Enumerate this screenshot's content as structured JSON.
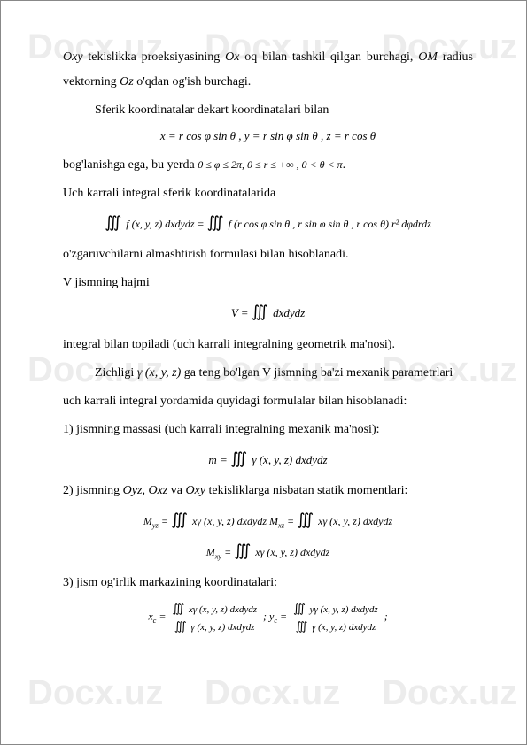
{
  "watermark": "Docx.uz",
  "p1_a": "Oxy",
  "p1_b": " tekislikka proeksiyasining ",
  "p1_c": "Ox",
  "p1_d": " oq bilan tashkil qilgan burchagi, ",
  "p1_e": "OM",
  "p1_f": " radius vektorning ",
  "p1_g": "Oz",
  "p1_h": " o'qdan og'ish burchagi.",
  "p2": "Sferik koordinatalar dekart koordinatalari bilan",
  "f1": "x = r cos φ sin θ , y = r sin φ sin θ , z = r cos θ",
  "p3_a": "bog'lanishga ega, bu yerda ",
  "p3_b": "0 ≤ φ ≤ 2π, 0 ≤ r ≤ +∞ , 0 < θ < π",
  "p3_c": ".",
  "p4": "Uch karrali integral sferik koordinatalarida",
  "f2_a": "∭",
  "f2_b": " f (x, y, z) dxdydz = ",
  "f2_c": "∭",
  "f2_d": " f (r cos φ sin θ , r sin φ sin θ , r cos θ) r² dφdrdz",
  "p5": "o'zgaruvchilarni almashtirish formulasi bilan hisoblanadi.",
  "p6": "V jismning hajmi",
  "f3_a": "V = ",
  "f3_b": "∭",
  "f3_c": " dxdydz",
  "p7": "integral bilan topiladi (uch karrali integralning geometrik ma'nosi).",
  "p8_a": "Zichligi ",
  "p8_b": "γ (x, y, z)",
  "p8_c": " ga teng bo'lgan V jismning ba'zi mexanik parametrlari",
  "p9": "uch karrali integral yordamida quyidagi formulalar bilan hisoblanadi:",
  "p10": "1) jismning massasi (uch karrali integralning mexanik ma'nosi):",
  "f4_a": "m = ",
  "f4_b": "∭",
  "f4_c": " γ (x, y, z) dxdydz",
  "p11_a": "2) jismning ",
  "p11_b": "Oyz, Oxz",
  "p11_c": " va ",
  "p11_d": "Oxy",
  "p11_e": " tekisliklarga nisbatan statik momentlari:",
  "f5_a": "M",
  "f5_sub1": "yz",
  "f5_b": " = ",
  "f5_c": "∭",
  "f5_d": " xγ (x, y, z) dxdydz  M",
  "f5_sub2": "xz",
  "f5_e": " = ",
  "f5_f": "∭",
  "f5_g": " xγ (x, y, z) dxdydz",
  "f6_a": "M",
  "f6_sub": "xy",
  "f6_b": " = ",
  "f6_c": "∭",
  "f6_d": " xγ (x, y, z) dxdydz",
  "p12": "3) jism og'irlik markazining koordinatalari:",
  "f7_xc": "x",
  "f7_c": "c",
  "f7_eq": " = ",
  "f7_num1_a": "∭",
  "f7_num1_b": " xγ (x, y, z) dxdydz",
  "f7_den1_a": "∭",
  "f7_den1_b": " γ (x, y, z) dxdydz",
  "f7_sep": " ; y",
  "f7_num2_a": "∭",
  "f7_num2_b": " yγ (x, y, z) dxdydz",
  "f7_den2_a": "∭",
  "f7_den2_b": " γ (x, y, z) dxdydz",
  "f7_end": " ;"
}
